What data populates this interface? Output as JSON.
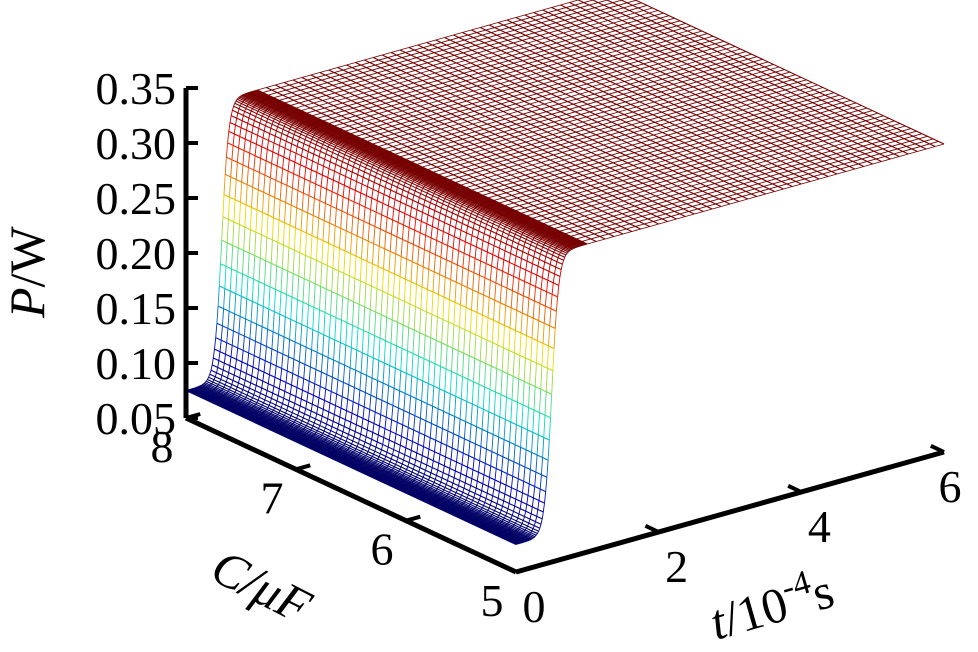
{
  "chart_data": {
    "type": "surface3d",
    "render": "mesh",
    "colormap": "jet",
    "axes": {
      "x": {
        "label_var": "t",
        "label_rest": "/10",
        "label_exp": "-4",
        "label_unit": "s",
        "range": [
          0,
          6
        ],
        "ticks": [
          0,
          2,
          4,
          6
        ],
        "tick_labels": [
          "0",
          "2",
          "4",
          "6"
        ]
      },
      "y": {
        "label_var": "C",
        "label_rest": "/μF",
        "range": [
          5,
          8
        ],
        "ticks": [
          5,
          6,
          7,
          8
        ],
        "tick_labels": [
          "5",
          "6",
          "7",
          "8"
        ]
      },
      "z": {
        "label_var": "P",
        "label_rest": "/W",
        "range": [
          0.05,
          0.35
        ],
        "ticks": [
          0.05,
          0.1,
          0.15,
          0.2,
          0.25,
          0.3,
          0.35
        ],
        "tick_labels": [
          "0.05",
          "0.10",
          "0.15",
          "0.20",
          "0.25",
          "0.30",
          "0.35"
        ]
      }
    },
    "surface_model": {
      "description_free": true,
      "P_initial": 0.075,
      "P_final": 0.33,
      "rise_time_midpoint": 0.5,
      "rise_width": 0.22
    },
    "samples": [
      {
        "t": 0,
        "P": 0.075
      },
      {
        "t": 0.25,
        "P": 0.1
      },
      {
        "t": 0.5,
        "P": 0.2
      },
      {
        "t": 0.75,
        "P": 0.3
      },
      {
        "t": 1.0,
        "P": 0.325
      },
      {
        "t": 2.0,
        "P": 0.33
      },
      {
        "t": 4.0,
        "P": 0.33
      },
      {
        "t": 6.0,
        "P": 0.33
      }
    ]
  }
}
